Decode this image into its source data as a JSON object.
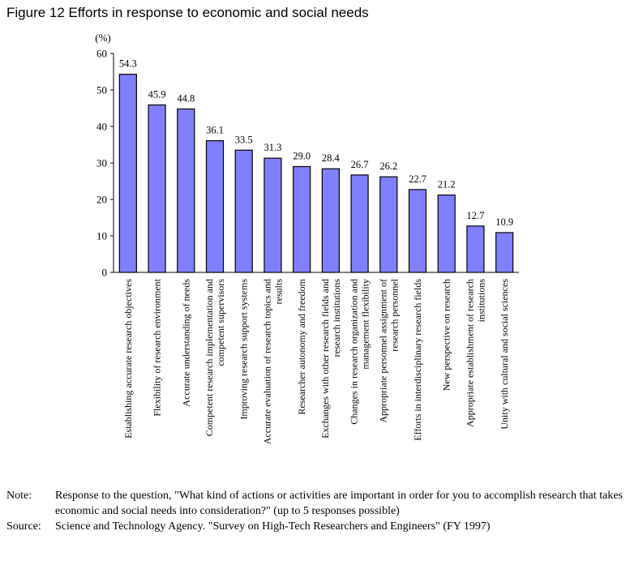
{
  "title": "Figure 12 Efforts in response to economic and social needs",
  "chart_data": {
    "type": "bar",
    "unit_label": "(%)",
    "ylim": [
      0,
      60
    ],
    "yticks": [
      0,
      10,
      20,
      30,
      40,
      50,
      60
    ],
    "grid": false,
    "bar_color": "#8080ff",
    "categories": [
      [
        "Establishing accurate research objectives"
      ],
      [
        "Flexibility of research environment"
      ],
      [
        "Accurate understanding of needs"
      ],
      [
        "Competent research implementation and",
        "competent supervisors"
      ],
      [
        "Improving research support systems"
      ],
      [
        "Accurate evaluation of research topics and",
        "results"
      ],
      [
        "Researcher autonomy and freedom"
      ],
      [
        "Exchanges with other research fields and",
        "research institutions"
      ],
      [
        "Changes in research organization and",
        "management flexibility"
      ],
      [
        "Appropriate personnel assignment of",
        "research personnel"
      ],
      [
        "Efforts in interdisciplinary research fields"
      ],
      [
        "New perspective on research"
      ],
      [
        "Appropriate establishment of research",
        "institutions"
      ],
      [
        "Unity with cultural and social sciences"
      ]
    ],
    "values": [
      54.3,
      45.9,
      44.8,
      36.1,
      33.5,
      31.3,
      29.0,
      28.4,
      26.7,
      26.2,
      22.7,
      21.2,
      12.7,
      10.9
    ],
    "value_labels": [
      "54.3",
      "45.9",
      "44.8",
      "36.1",
      "33.5",
      "31.3",
      "29.0",
      "28.4",
      "26.7",
      "26.2",
      "22.7",
      "21.2",
      "12.7",
      "10.9"
    ]
  },
  "note": {
    "label": "Note:",
    "text": "Response to the question, \"What kind of actions or activities are important in order for you to accomplish research that takes economic and social needs into consideration?\" (up to 5 responses possible)"
  },
  "source": {
    "label": "Source:",
    "text": "Science and Technology Agency. \"Survey on High-Tech Researchers and Engineers\" (FY 1997)"
  }
}
